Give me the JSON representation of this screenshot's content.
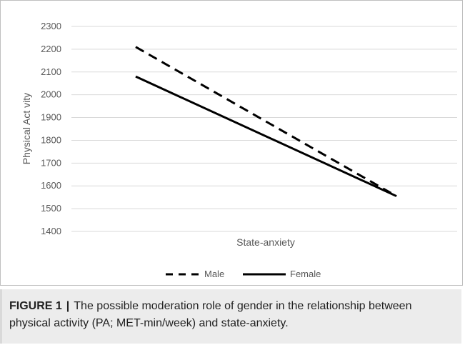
{
  "chart_data": {
    "type": "line",
    "xlabel": "State-anxiety",
    "ylabel": "Physical Act vity",
    "ylim": [
      1400,
      2300
    ],
    "yticks": [
      1400,
      1500,
      1600,
      1700,
      1800,
      1900,
      2000,
      2100,
      2200,
      2300
    ],
    "grid": true,
    "legend_position": "bottom",
    "x": [
      0,
      1
    ],
    "series": [
      {
        "name": "Male",
        "values": [
          2210,
          1555
        ],
        "style": "dashed",
        "color": "#000000"
      },
      {
        "name": "Female",
        "values": [
          2080,
          1555
        ],
        "style": "solid",
        "color": "#000000"
      }
    ]
  },
  "caption": {
    "label": "FIGURE 1",
    "separator": "|",
    "text": "The possible moderation role of gender in the relationship between physical activity (PA; MET-min/week) and state-anxiety."
  }
}
